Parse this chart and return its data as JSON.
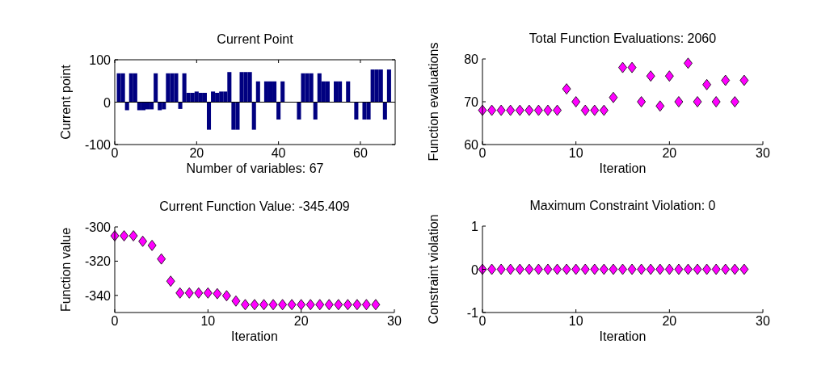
{
  "chart_data": [
    {
      "type": "bar",
      "title": "Current Point",
      "xlabel": "Number of variables: 67",
      "ylabel": "Current point",
      "x": [
        1,
        2,
        3,
        4,
        5,
        6,
        7,
        8,
        9,
        10,
        11,
        12,
        13,
        14,
        15,
        16,
        17,
        18,
        19,
        20,
        21,
        22,
        23,
        24,
        25,
        26,
        27,
        28,
        29,
        30,
        31,
        32,
        33,
        34,
        35,
        36,
        37,
        38,
        39,
        40,
        41,
        42,
        43,
        44,
        45,
        46,
        47,
        48,
        49,
        50,
        51,
        52,
        53,
        54,
        55,
        56,
        57,
        58,
        59,
        60,
        61,
        62,
        63,
        64,
        65,
        66,
        67
      ],
      "values": [
        68,
        68,
        -19,
        68,
        68,
        -19,
        -19,
        -17,
        -17,
        68,
        -19,
        -17,
        68,
        68,
        68,
        -16,
        68,
        22,
        22,
        25,
        22,
        22,
        -65,
        25,
        22,
        25,
        25,
        71,
        -65,
        -65,
        71,
        71,
        71,
        -65,
        49,
        0,
        49,
        49,
        49,
        -41,
        49,
        0,
        0,
        0,
        -41,
        68,
        68,
        68,
        -41,
        68,
        49,
        49,
        0,
        49,
        49,
        0,
        49,
        0,
        -41,
        0,
        -41,
        -41,
        77,
        77,
        77,
        -41,
        77
      ],
      "color": "#000080",
      "xlim": [
        0,
        68.5
      ],
      "xticks": [
        0,
        20,
        40,
        60
      ],
      "ylim": [
        -100,
        100
      ],
      "yticks": [
        -100,
        0,
        100
      ],
      "grid": false,
      "ref_lines": [
        {
          "axis": "y",
          "value": 0,
          "color": "#000000"
        }
      ]
    },
    {
      "type": "scatter",
      "title": "Total Function Evaluations: 2060",
      "xlabel": "Iteration",
      "ylabel": "Function evaluations",
      "x": [
        0,
        1,
        2,
        3,
        4,
        5,
        6,
        7,
        8,
        9,
        10,
        11,
        12,
        13,
        14,
        15,
        16,
        17,
        18,
        19,
        20,
        21,
        22,
        23,
        24,
        25,
        26,
        27,
        28
      ],
      "values": [
        68,
        68,
        68,
        68,
        68,
        68,
        68,
        68,
        68,
        73,
        70,
        68,
        68,
        68,
        71,
        78,
        78,
        70,
        76,
        69,
        76,
        70,
        79,
        70,
        74,
        70,
        75,
        70,
        75
      ],
      "color": "#ff00ff",
      "marker": "diamond",
      "xlim": [
        0,
        30
      ],
      "xticks": [
        0,
        10,
        20,
        30
      ],
      "ylim": [
        60,
        80
      ],
      "yticks": [
        60,
        70,
        80
      ],
      "grid": false
    },
    {
      "type": "scatter",
      "title": "Current Function Value: -345.409",
      "xlabel": "Iteration",
      "ylabel": "Function value",
      "x": [
        0,
        1,
        2,
        3,
        4,
        5,
        6,
        7,
        8,
        9,
        10,
        11,
        12,
        13,
        14,
        15,
        16,
        17,
        18,
        19,
        20,
        21,
        22,
        23,
        24,
        25,
        26,
        27,
        28
      ],
      "values": [
        -305.2,
        -305.2,
        -305.2,
        -308.4,
        -310.8,
        -318.7,
        -331.7,
        -338.6,
        -338.6,
        -338.6,
        -338.6,
        -339,
        -340.2,
        -343.3,
        -345.4,
        -345.4,
        -345.4,
        -345.4,
        -345.4,
        -345.4,
        -345.4,
        -345.4,
        -345.4,
        -345.4,
        -345.4,
        -345.4,
        -345.4,
        -345.4,
        -345.4
      ],
      "color": "#ff00ff",
      "marker": "diamond",
      "xlim": [
        0,
        30
      ],
      "xticks": [
        0,
        10,
        20,
        30
      ],
      "ylim": [
        -350,
        -300
      ],
      "yticks": [
        -300,
        -320,
        -340
      ],
      "grid": false
    },
    {
      "type": "scatter",
      "title": "Maximum Constraint Violation: 0",
      "xlabel": "Iteration",
      "ylabel": "Constraint violation",
      "x": [
        0,
        1,
        2,
        3,
        4,
        5,
        6,
        7,
        8,
        9,
        10,
        11,
        12,
        13,
        14,
        15,
        16,
        17,
        18,
        19,
        20,
        21,
        22,
        23,
        24,
        25,
        26,
        27,
        28
      ],
      "values": [
        0,
        0,
        0,
        0,
        0,
        0,
        0,
        0,
        0,
        0,
        0,
        0,
        0,
        0,
        0,
        0,
        0,
        0,
        0,
        0,
        0,
        0,
        0,
        0,
        0,
        0,
        0,
        0,
        0
      ],
      "color": "#ff00ff",
      "marker": "diamond",
      "xlim": [
        0,
        30
      ],
      "xticks": [
        0,
        10,
        20,
        30
      ],
      "ylim": [
        -1,
        1
      ],
      "yticks": [
        -1,
        0,
        1
      ],
      "grid": false
    }
  ]
}
